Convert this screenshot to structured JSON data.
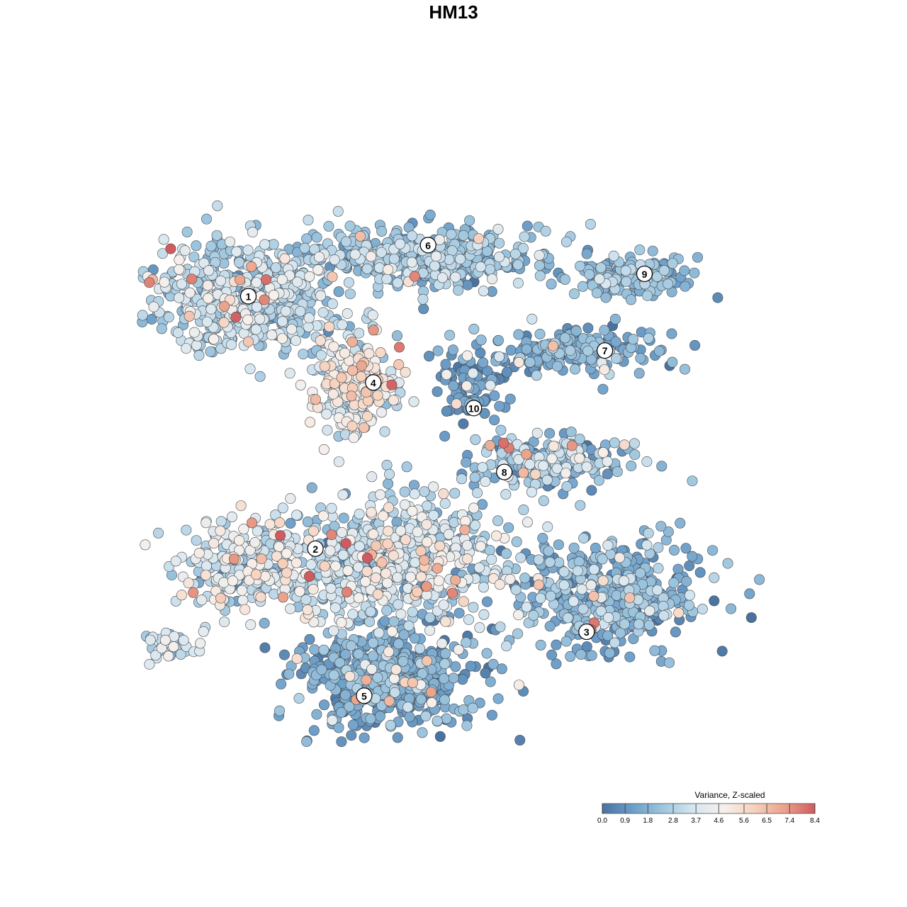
{
  "chart_data": {
    "type": "scatter",
    "title": "HM13",
    "xlabel": "",
    "ylabel": "",
    "grid": false,
    "xlim": [
      0,
      100
    ],
    "ylim": [
      0,
      100
    ],
    "legend": {
      "title": "Variance, Z-scaled",
      "placement": "bottom-right",
      "tick_labels": [
        "0.0",
        "0.9",
        "1.8",
        "2.8",
        "3.7",
        "4.6",
        "5.6",
        "6.5",
        "7.4",
        "8.4"
      ],
      "range": [
        0,
        8.4
      ],
      "colors": [
        "#4a72a0",
        "#6c9ec9",
        "#9ec6df",
        "#d6e6f0",
        "#f6f0ec",
        "#f6d1bd",
        "#eba28a",
        "#d15a5f"
      ]
    },
    "clusters": [
      {
        "label": "1",
        "x": 12.5,
        "y": 74.5,
        "sx": 10.5,
        "sy": 6.5,
        "n": 520,
        "mean": 2.9,
        "sd": 0.9
      },
      {
        "label": "6",
        "x": 42.0,
        "y": 80.5,
        "sx": 13.5,
        "sy": 3.2,
        "n": 420,
        "mean": 2.2,
        "sd": 0.8
      },
      {
        "label": "9",
        "x": 75.5,
        "y": 77.5,
        "sx": 7.5,
        "sy": 2.4,
        "n": 150,
        "mean": 1.9,
        "sd": 0.7
      },
      {
        "label": "7",
        "x": 66.0,
        "y": 66.0,
        "sx": 10.5,
        "sy": 2.5,
        "n": 190,
        "mean": 1.5,
        "sd": 0.7
      },
      {
        "label": "4",
        "x": 30.5,
        "y": 60.5,
        "sx": 5.0,
        "sy": 5.0,
        "n": 260,
        "mean": 3.9,
        "sd": 1.1
      },
      {
        "label": "10",
        "x": 49.5,
        "y": 60.0,
        "sx": 4.0,
        "sy": 3.5,
        "n": 80,
        "mean": 1.0,
        "sd": 0.5
      },
      {
        "label": "8",
        "x": 62.5,
        "y": 48.5,
        "sx": 8.5,
        "sy": 3.0,
        "n": 200,
        "mean": 2.3,
        "sd": 1.1
      },
      {
        "label": "2",
        "x": 13.0,
        "y": 32.5,
        "sx": 8.5,
        "sy": 5.0,
        "n": 270,
        "mean": 3.2,
        "sd": 1.0
      },
      {
        "label": "3",
        "x": 72.5,
        "y": 27.5,
        "sx": 10.0,
        "sy": 6.0,
        "n": 430,
        "mean": 1.8,
        "sd": 0.8
      },
      {
        "label": "5",
        "x": 35.5,
        "y": 14.5,
        "sx": 9.5,
        "sy": 5.0,
        "n": 560,
        "mean": 1.4,
        "sd": 0.7
      },
      {
        "label": "",
        "x": 37.0,
        "y": 33.0,
        "sx": 13.0,
        "sy": 7.0,
        "n": 620,
        "mean": 3.0,
        "sd": 1.3
      },
      {
        "label": "",
        "x": -2.5,
        "y": 19.5,
        "sx": 4.0,
        "sy": 1.6,
        "n": 50,
        "mean": 3.3,
        "sd": 0.8
      }
    ],
    "marker_positions": [
      {
        "label": "1",
        "x": 12.5,
        "y": 74.5
      },
      {
        "label": "6",
        "x": 42.0,
        "y": 82.5
      },
      {
        "label": "9",
        "x": 77.5,
        "y": 78.0
      },
      {
        "label": "7",
        "x": 71.0,
        "y": 66.0
      },
      {
        "label": "4",
        "x": 33.0,
        "y": 61.0
      },
      {
        "label": "10",
        "x": 49.5,
        "y": 57.0
      },
      {
        "label": "8",
        "x": 54.5,
        "y": 47.0
      },
      {
        "label": "2",
        "x": 23.5,
        "y": 35.0
      },
      {
        "label": "3",
        "x": 68.0,
        "y": 22.0
      },
      {
        "label": "5",
        "x": 31.5,
        "y": 12.0
      }
    ]
  }
}
